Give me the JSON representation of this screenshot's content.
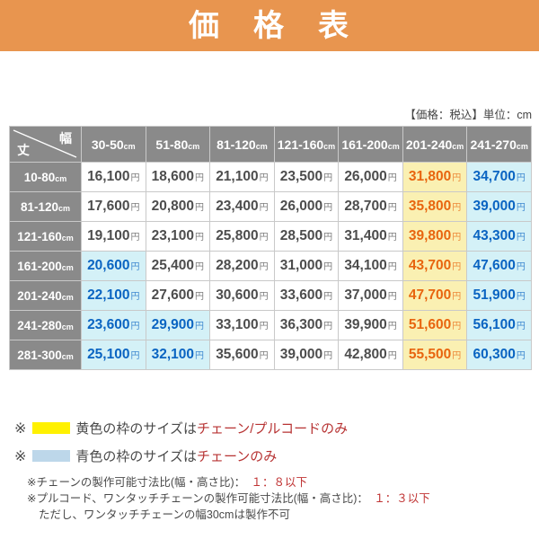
{
  "banner": {
    "title": "価　格　表"
  },
  "meta": {
    "note": "【価格：税込】単位：cm"
  },
  "table": {
    "corner": {
      "row_axis_label": "丈",
      "col_axis_label": "幅"
    },
    "unit": "cm",
    "yen": "円",
    "columns": [
      "30-50",
      "51-80",
      "81-120",
      "121-160",
      "161-200",
      "201-240",
      "241-270"
    ],
    "rows": [
      {
        "label": "10-80",
        "cells": [
          {
            "v": "16,100",
            "h": "none"
          },
          {
            "v": "18,600",
            "h": "none"
          },
          {
            "v": "21,100",
            "h": "none"
          },
          {
            "v": "23,500",
            "h": "none"
          },
          {
            "v": "26,000",
            "h": "none"
          },
          {
            "v": "31,800",
            "h": "yellow"
          },
          {
            "v": "34,700",
            "h": "blue"
          }
        ]
      },
      {
        "label": "81-120",
        "cells": [
          {
            "v": "17,600",
            "h": "none"
          },
          {
            "v": "20,800",
            "h": "none"
          },
          {
            "v": "23,400",
            "h": "none"
          },
          {
            "v": "26,000",
            "h": "none"
          },
          {
            "v": "28,700",
            "h": "none"
          },
          {
            "v": "35,800",
            "h": "yellow"
          },
          {
            "v": "39,000",
            "h": "blue"
          }
        ]
      },
      {
        "label": "121-160",
        "cells": [
          {
            "v": "19,100",
            "h": "none"
          },
          {
            "v": "23,100",
            "h": "none"
          },
          {
            "v": "25,800",
            "h": "none"
          },
          {
            "v": "28,500",
            "h": "none"
          },
          {
            "v": "31,400",
            "h": "none"
          },
          {
            "v": "39,800",
            "h": "yellow"
          },
          {
            "v": "43,300",
            "h": "blue"
          }
        ]
      },
      {
        "label": "161-200",
        "cells": [
          {
            "v": "20,600",
            "h": "blue"
          },
          {
            "v": "25,400",
            "h": "none"
          },
          {
            "v": "28,200",
            "h": "none"
          },
          {
            "v": "31,000",
            "h": "none"
          },
          {
            "v": "34,100",
            "h": "none"
          },
          {
            "v": "43,700",
            "h": "yellow"
          },
          {
            "v": "47,600",
            "h": "blue"
          }
        ]
      },
      {
        "label": "201-240",
        "cells": [
          {
            "v": "22,100",
            "h": "blue"
          },
          {
            "v": "27,600",
            "h": "none"
          },
          {
            "v": "30,600",
            "h": "none"
          },
          {
            "v": "33,600",
            "h": "none"
          },
          {
            "v": "37,000",
            "h": "none"
          },
          {
            "v": "47,700",
            "h": "yellow"
          },
          {
            "v": "51,900",
            "h": "blue"
          }
        ]
      },
      {
        "label": "241-280",
        "cells": [
          {
            "v": "23,600",
            "h": "blue"
          },
          {
            "v": "29,900",
            "h": "blue"
          },
          {
            "v": "33,100",
            "h": "none"
          },
          {
            "v": "36,300",
            "h": "none"
          },
          {
            "v": "39,900",
            "h": "none"
          },
          {
            "v": "51,600",
            "h": "yellow"
          },
          {
            "v": "56,100",
            "h": "blue"
          }
        ]
      },
      {
        "label": "281-300",
        "cells": [
          {
            "v": "25,100",
            "h": "blue"
          },
          {
            "v": "32,100",
            "h": "blue"
          },
          {
            "v": "35,600",
            "h": "none"
          },
          {
            "v": "39,000",
            "h": "none"
          },
          {
            "v": "42,800",
            "h": "none"
          },
          {
            "v": "55,500",
            "h": "yellow"
          },
          {
            "v": "60,300",
            "h": "blue"
          }
        ]
      }
    ]
  },
  "legend": [
    {
      "marker": "※",
      "text_black": "黄色の枠のサイズは",
      "text_red": "チェーン/プルコードのみ"
    },
    {
      "marker": "※",
      "text_black": "青色の枠のサイズは",
      "text_red": "チェーンのみ"
    }
  ],
  "footnotes": [
    {
      "prefix": "※チェーンの製作可能寸法比(幅・高さ比)：　",
      "red": "１：８以下"
    },
    {
      "prefix": "※プルコード、ワンタッチチェーンの製作可能寸法比(幅・高さ比)：　",
      "red": "１：３以下"
    },
    {
      "prefix": "ただし、ワンタッチチェーンの幅30cmは製作不可",
      "red": ""
    }
  ],
  "colors": {
    "banner_orange": "#E8954F",
    "header_gray": "#8A8A8A",
    "cell_yellow_bg": "#FAF0B2",
    "cell_yellow_text": "#E8650F",
    "cell_blue_bg": "#D4F1F7",
    "cell_blue_text": "#0A64C2",
    "swatch_yellow": "#FFF100",
    "swatch_blue": "#BDD7EA",
    "note_red": "#B73333"
  }
}
